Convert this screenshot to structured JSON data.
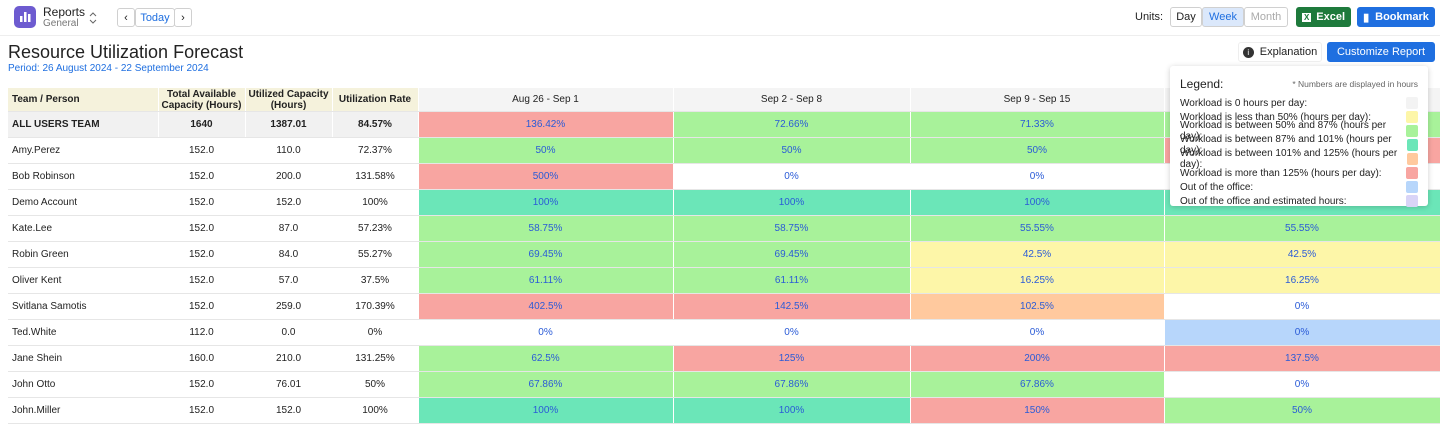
{
  "header": {
    "app": "Reports",
    "sub": "General",
    "today": "Today",
    "units_label": "Units:",
    "units": [
      "Day",
      "Week",
      "Month"
    ],
    "excel": "Excel",
    "bookmark": "Bookmark"
  },
  "report": {
    "title": "Resource Utilization Forecast",
    "period": "Period: 26 August 2024 - 22 September 2024",
    "explanation": "Explanation",
    "customize": "Customize Report"
  },
  "table": {
    "columns": [
      "Team / Person",
      "Total Available Capacity (Hours)",
      "Utilized Capacity (Hours)",
      "Utilization Rate",
      "Aug 26 - Sep 1",
      "Sep 2 - Sep 8",
      "Sep 9 - Sep 15",
      null
    ],
    "rows": [
      {
        "name": "ALL USERS TEAM",
        "total": "1640",
        "utilized": "1387.01",
        "rate": "84.57%",
        "weeks": [
          {
            "text": "136.42%",
            "color": "#f8a5a1"
          },
          {
            "text": "72.66%",
            "color": "#a8f29a"
          },
          {
            "text": "71.33%",
            "color": "#a8f29a"
          },
          {
            "text": null,
            "color": "#a8f29a"
          }
        ]
      },
      {
        "name": "Amy.Perez",
        "total": "152.0",
        "utilized": "110.0",
        "rate": "72.37%",
        "weeks": [
          {
            "text": "50%",
            "color": "#a8f29a"
          },
          {
            "text": "50%",
            "color": "#a8f29a"
          },
          {
            "text": "50%",
            "color": "#a8f29a"
          },
          {
            "text": null,
            "color": "#f8a5a1"
          }
        ]
      },
      {
        "name": "Bob Robinson",
        "total": "152.0",
        "utilized": "200.0",
        "rate": "131.58%",
        "weeks": [
          {
            "text": "500%",
            "color": "#f8a5a1"
          },
          {
            "text": "0%",
            "color": "#ffffff"
          },
          {
            "text": "0%",
            "color": "#ffffff"
          },
          {
            "text": null,
            "color": "#ffffff"
          }
        ]
      },
      {
        "name": "Demo Account",
        "total": "152.0",
        "utilized": "152.0",
        "rate": "100%",
        "weeks": [
          {
            "text": "100%",
            "color": "#6be6b8"
          },
          {
            "text": "100%",
            "color": "#6be6b8"
          },
          {
            "text": "100%",
            "color": "#6be6b8"
          },
          {
            "text": null,
            "color": "#6be6b8"
          }
        ]
      },
      {
        "name": "Kate.Lee",
        "total": "152.0",
        "utilized": "87.0",
        "rate": "57.23%",
        "weeks": [
          {
            "text": "58.75%",
            "color": "#a8f29a"
          },
          {
            "text": "58.75%",
            "color": "#a8f29a"
          },
          {
            "text": "55.55%",
            "color": "#a8f29a"
          },
          {
            "text": "55.55%",
            "color": "#a8f29a"
          }
        ]
      },
      {
        "name": "Robin Green",
        "total": "152.0",
        "utilized": "84.0",
        "rate": "55.27%",
        "weeks": [
          {
            "text": "69.45%",
            "color": "#a8f29a"
          },
          {
            "text": "69.45%",
            "color": "#a8f29a"
          },
          {
            "text": "42.5%",
            "color": "#fdf6a8"
          },
          {
            "text": "42.5%",
            "color": "#fdf6a8"
          }
        ]
      },
      {
        "name": "Oliver Kent",
        "total": "152.0",
        "utilized": "57.0",
        "rate": "37.5%",
        "weeks": [
          {
            "text": "61.11%",
            "color": "#a8f29a"
          },
          {
            "text": "61.11%",
            "color": "#a8f29a"
          },
          {
            "text": "16.25%",
            "color": "#fdf6a8"
          },
          {
            "text": "16.25%",
            "color": "#fdf6a8"
          }
        ]
      },
      {
        "name": "Svitlana Samotis",
        "total": "152.0",
        "utilized": "259.0",
        "rate": "170.39%",
        "weeks": [
          {
            "text": "402.5%",
            "color": "#f8a5a1"
          },
          {
            "text": "142.5%",
            "color": "#f8a5a1"
          },
          {
            "text": "102.5%",
            "color": "#ffc99e"
          },
          {
            "text": "0%",
            "color": "#ffffff"
          }
        ]
      },
      {
        "name": "Ted.White",
        "total": "112.0",
        "utilized": "0.0",
        "rate": "0%",
        "weeks": [
          {
            "text": "0%",
            "color": "#ffffff"
          },
          {
            "text": "0%",
            "color": "#ffffff"
          },
          {
            "text": "0%",
            "color": "#ffffff"
          },
          {
            "text": "0%",
            "color": "#b7d6fb"
          }
        ]
      },
      {
        "name": "Jane Shein",
        "total": "160.0",
        "utilized": "210.0",
        "rate": "131.25%",
        "weeks": [
          {
            "text": "62.5%",
            "color": "#a8f29a"
          },
          {
            "text": "125%",
            "color": "#f8a5a1"
          },
          {
            "text": "200%",
            "color": "#f8a5a1"
          },
          {
            "text": "137.5%",
            "color": "#f8a5a1"
          }
        ]
      },
      {
        "name": "John Otto",
        "total": "152.0",
        "utilized": "76.01",
        "rate": "50%",
        "weeks": [
          {
            "text": "67.86%",
            "color": "#a8f29a"
          },
          {
            "text": "67.86%",
            "color": "#a8f29a"
          },
          {
            "text": "67.86%",
            "color": "#a8f29a"
          },
          {
            "text": "0%",
            "color": "#ffffff"
          }
        ]
      },
      {
        "name": "John.Miller",
        "total": "152.0",
        "utilized": "152.0",
        "rate": "100%",
        "weeks": [
          {
            "text": "100%",
            "color": "#6be6b8"
          },
          {
            "text": "100%",
            "color": "#6be6b8"
          },
          {
            "text": "150%",
            "color": "#f8a5a1"
          },
          {
            "text": "50%",
            "color": "#a8f29a"
          }
        ]
      }
    ]
  },
  "legend": {
    "title": "Legend:",
    "note": "* Numbers are displayed in hours",
    "items": [
      {
        "label": "Workload is 0 hours per day:",
        "color": "#f3f3f3"
      },
      {
        "label": "Workload is less than 50% (hours per day):",
        "color": "#fdf6a8"
      },
      {
        "label": "Workload is between 50% and 87% (hours per day):",
        "color": "#a8f29a"
      },
      {
        "label": "Workload is between 87% and 101% (hours per day):",
        "color": "#6be6b8"
      },
      {
        "label": "Workload is between 101% and 125% (hours per day):",
        "color": "#ffc99e"
      },
      {
        "label": "Workload is more than 125% (hours per day):",
        "color": "#f8a5a1"
      },
      {
        "label": "Out of the office:",
        "color": "#b7d6fb"
      },
      {
        "label": "Out of the office and estimated hours:",
        "color": "#d9d4f7"
      }
    ]
  }
}
